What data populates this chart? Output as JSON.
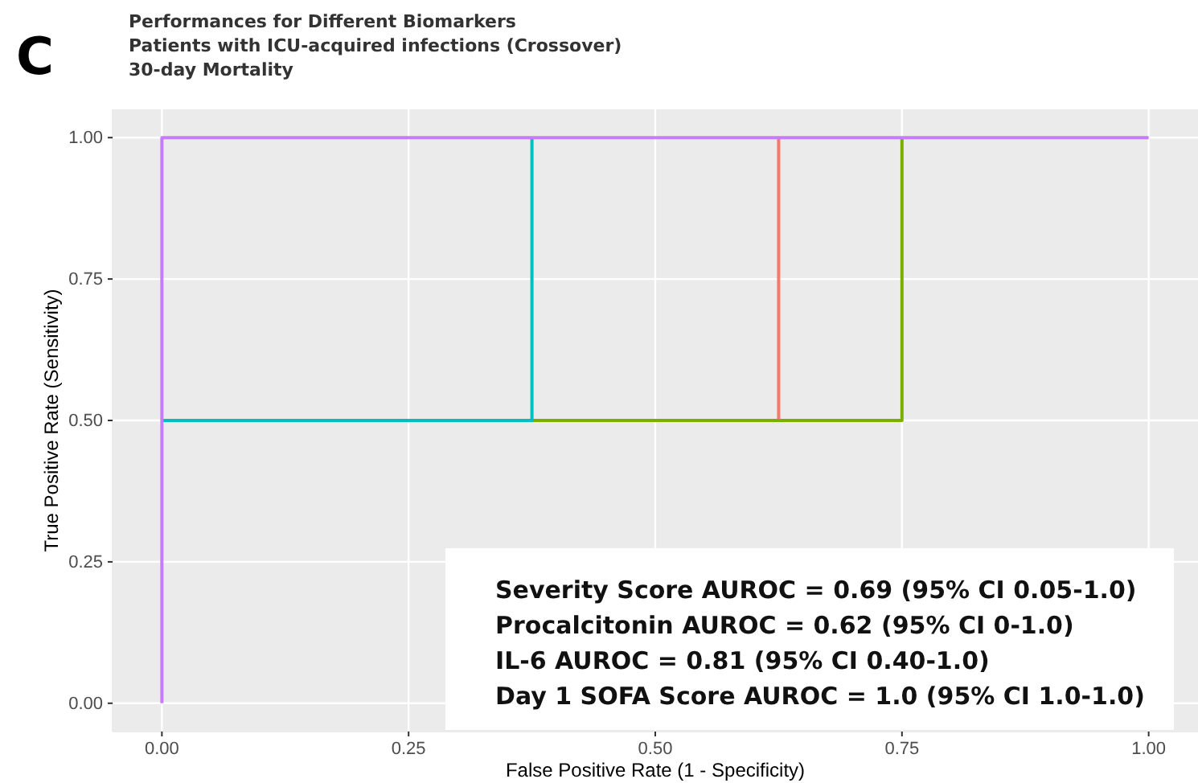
{
  "chart_data": {
    "type": "line",
    "title": "Performances for Different Biomarkers",
    "subtitle": "Patients with ICU-acquired infections (Crossover)\n30-day Mortality",
    "xlabel": "False Positive Rate (1 - Specificity)",
    "ylabel": "True Positive Rate (Sensitivity)",
    "xlim": [
      -0.05,
      1.05
    ],
    "ylim": [
      -0.05,
      1.05
    ],
    "xticks": [
      {
        "value": 0,
        "label": "0.00"
      },
      {
        "value": 0.25,
        "label": "0.25"
      },
      {
        "value": 0.5,
        "label": "0.50"
      },
      {
        "value": 0.75,
        "label": "0.75"
      },
      {
        "value": 1,
        "label": "1.00"
      }
    ],
    "yticks": [
      {
        "value": 0,
        "label": "0.00"
      },
      {
        "value": 0.25,
        "label": "0.25"
      },
      {
        "value": 0.5,
        "label": "0.50"
      },
      {
        "value": 0.75,
        "label": "0.75"
      },
      {
        "value": 1,
        "label": "1.00"
      }
    ],
    "grid": true,
    "line_style": "solid",
    "marker": "none",
    "series": [
      {
        "color": "#f8766d",
        "x": [
          0.625,
          0.625
        ],
        "values": [
          0.5,
          1
        ]
      },
      {
        "color": "#7cae00",
        "x": [
          0.375,
          0.75,
          0.75
        ],
        "values": [
          0.5,
          0.5,
          1
        ]
      },
      {
        "color": "#00bfc4",
        "x": [
          0,
          0.375,
          0.375
        ],
        "values": [
          0.5,
          0.5,
          1
        ]
      },
      {
        "color": "#c77cff",
        "x": [
          0,
          0,
          1
        ],
        "values": [
          0,
          1,
          1
        ]
      }
    ],
    "annotations": [
      "C",
      "Severity Score AUROC = 0.69 (95% CI 0.05-1.0)",
      "Procalcitonin AUROC = 0.62 (95% CI 0-1.0)",
      "IL-6 AUROC = 0.81 (95% CI 0.40-1.0)",
      "Day 1 SOFA Score AUROC = 1.0 (95% CI 1.0-1.0)"
    ]
  }
}
